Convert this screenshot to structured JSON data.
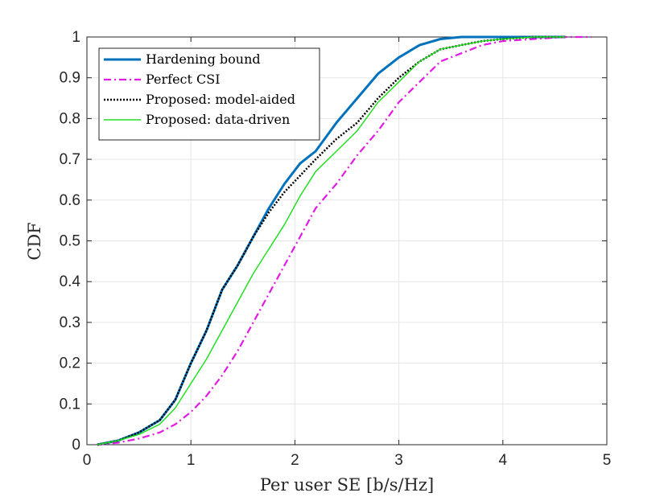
{
  "chart_data": {
    "type": "line",
    "title": "",
    "xlabel": "Per user SE [b/s/Hz]",
    "ylabel": "CDF",
    "xlim": [
      0,
      5
    ],
    "ylim": [
      0,
      1
    ],
    "xticks": [
      0,
      1,
      2,
      3,
      4,
      5
    ],
    "xtick_labels": [
      "0",
      "1",
      "2",
      "3",
      "4",
      "5"
    ],
    "yticks": [
      0,
      0.1,
      0.2,
      0.3,
      0.4,
      0.5,
      0.6,
      0.7,
      0.8,
      0.9,
      1
    ],
    "ytick_labels": [
      "0",
      "0.1",
      "0.2",
      "0.3",
      "0.4",
      "0.5",
      "0.6",
      "0.7",
      "0.8",
      "0.9",
      "1"
    ],
    "grid": true,
    "legend_position": "top-left",
    "series": [
      {
        "name": "Hardening bound",
        "color": "#0072BD",
        "dash": "solid",
        "x": [
          0.1,
          0.3,
          0.5,
          0.7,
          0.85,
          1.0,
          1.15,
          1.3,
          1.45,
          1.6,
          1.75,
          1.9,
          2.05,
          2.2,
          2.4,
          2.6,
          2.8,
          3.0,
          3.2,
          3.4,
          3.6,
          3.8,
          4.0,
          4.3,
          4.6
        ],
        "y": [
          0.0,
          0.01,
          0.03,
          0.06,
          0.11,
          0.2,
          0.28,
          0.38,
          0.44,
          0.51,
          0.58,
          0.64,
          0.69,
          0.72,
          0.79,
          0.85,
          0.91,
          0.95,
          0.98,
          0.995,
          1.0,
          1.0,
          1.0,
          1.0,
          1.0
        ]
      },
      {
        "name": "Perfect CSI",
        "color": "#E31AE3",
        "dash": "dashdot",
        "x": [
          0.1,
          0.3,
          0.5,
          0.7,
          0.85,
          1.0,
          1.15,
          1.3,
          1.45,
          1.6,
          1.75,
          1.9,
          2.05,
          2.2,
          2.4,
          2.6,
          2.8,
          3.0,
          3.2,
          3.4,
          3.6,
          3.8,
          4.0,
          4.3,
          4.6,
          4.85
        ],
        "y": [
          0.0,
          0.005,
          0.015,
          0.03,
          0.05,
          0.08,
          0.12,
          0.17,
          0.23,
          0.3,
          0.37,
          0.44,
          0.51,
          0.58,
          0.64,
          0.71,
          0.77,
          0.84,
          0.89,
          0.94,
          0.96,
          0.98,
          0.99,
          0.995,
          1.0,
          1.0
        ]
      },
      {
        "name": "Proposed: model-aided",
        "color": "#000000",
        "dash": "dotted",
        "x": [
          0.1,
          0.3,
          0.5,
          0.7,
          0.85,
          1.0,
          1.15,
          1.3,
          1.45,
          1.6,
          1.75,
          1.9,
          2.05,
          2.2,
          2.4,
          2.6,
          2.8,
          3.0,
          3.2,
          3.4,
          3.6,
          3.8,
          4.0,
          4.3,
          4.6
        ],
        "y": [
          0.0,
          0.01,
          0.03,
          0.06,
          0.11,
          0.2,
          0.28,
          0.38,
          0.44,
          0.51,
          0.57,
          0.62,
          0.66,
          0.7,
          0.75,
          0.79,
          0.85,
          0.9,
          0.94,
          0.97,
          0.98,
          0.99,
          0.995,
          1.0,
          1.0
        ]
      },
      {
        "name": "Proposed: data-driven",
        "color": "#22E022",
        "dash": "solid",
        "x": [
          0.1,
          0.3,
          0.5,
          0.7,
          0.85,
          1.0,
          1.15,
          1.3,
          1.45,
          1.6,
          1.75,
          1.9,
          2.05,
          2.2,
          2.4,
          2.6,
          2.8,
          3.0,
          3.2,
          3.4,
          3.6,
          3.8,
          4.0,
          4.3,
          4.6
        ],
        "y": [
          0.0,
          0.01,
          0.025,
          0.05,
          0.09,
          0.15,
          0.21,
          0.28,
          0.35,
          0.42,
          0.48,
          0.54,
          0.61,
          0.67,
          0.72,
          0.77,
          0.84,
          0.89,
          0.94,
          0.97,
          0.98,
          0.99,
          0.995,
          1.0,
          1.0
        ]
      }
    ]
  }
}
